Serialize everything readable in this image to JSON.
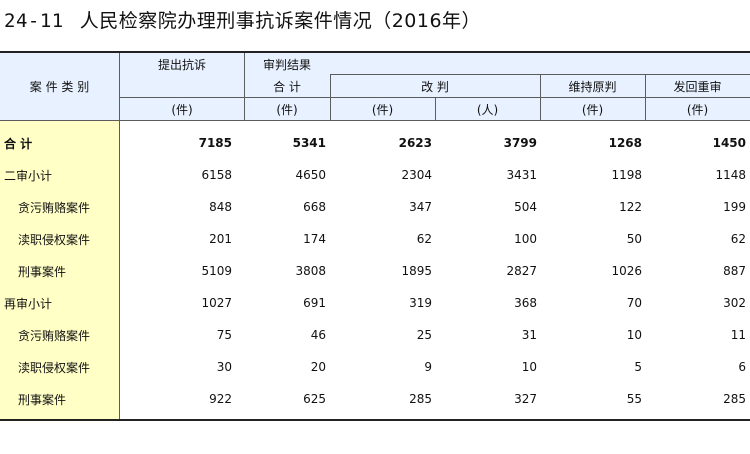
{
  "title": {
    "number": "24-11",
    "text": "人民检察院办理刑事抗诉案件情况（2016年）"
  },
  "header": {
    "category": "案 件 类 别",
    "filed": "提出抗诉",
    "results": "审判结果",
    "total": "合  计",
    "changed": "改  判",
    "upheld": "维持原判",
    "retrial": "发回重审",
    "units": [
      "(件)",
      "(件)",
      "(件)",
      "(人)",
      "(件)",
      "(件)"
    ]
  },
  "rows": [
    {
      "label": "合  计",
      "values": [
        "7185",
        "5341",
        "2623",
        "3799",
        "1268",
        "1450"
      ]
    },
    {
      "label": "二审小计",
      "values": [
        "6158",
        "4650",
        "2304",
        "3431",
        "1198",
        "1148"
      ]
    },
    {
      "label": "贪污贿赂案件",
      "values": [
        "848",
        "668",
        "347",
        "504",
        "122",
        "199"
      ]
    },
    {
      "label": "渎职侵权案件",
      "values": [
        "201",
        "174",
        "62",
        "100",
        "50",
        "62"
      ]
    },
    {
      "label": "刑事案件",
      "values": [
        "5109",
        "3808",
        "1895",
        "2827",
        "1026",
        "887"
      ]
    },
    {
      "label": "再审小计",
      "values": [
        "1027",
        "691",
        "319",
        "368",
        "70",
        "302"
      ]
    },
    {
      "label": "贪污贿赂案件",
      "values": [
        "75",
        "46",
        "25",
        "31",
        "10",
        "11"
      ]
    },
    {
      "label": "渎职侵权案件",
      "values": [
        "30",
        "20",
        "9",
        "10",
        "5",
        "6"
      ]
    },
    {
      "label": "刑事案件",
      "values": [
        "922",
        "625",
        "285",
        "327",
        "55",
        "285"
      ]
    }
  ],
  "colors": {
    "header_bg": "#e8f1ff",
    "stub_bg": "#ffffc6"
  }
}
